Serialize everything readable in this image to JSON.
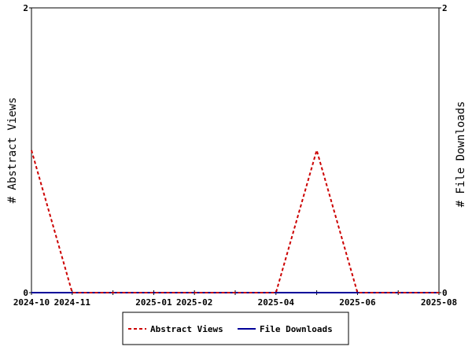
{
  "chart_data": {
    "type": "line",
    "x": [
      "2024-10",
      "2024-11",
      "2024-12",
      "2025-01",
      "2025-02",
      "2025-03",
      "2025-04",
      "2025-05",
      "2025-06",
      "2025-07",
      "2025-08"
    ],
    "x_tick_labels": [
      "2024-10",
      "2024-11",
      "",
      "2025-01",
      "2025-02",
      "",
      "2025-04",
      "",
      "2025-06",
      "",
      "2025-08"
    ],
    "series": [
      {
        "name": "Abstract Views",
        "axis": "left",
        "color": "#cc0000",
        "dash": "dashed",
        "values": [
          1,
          0,
          0,
          0,
          0,
          0,
          0,
          1,
          0,
          0,
          0
        ]
      },
      {
        "name": "File Downloads",
        "axis": "right",
        "color": "#000099",
        "dash": "solid",
        "values": [
          0,
          0,
          0,
          0,
          0,
          0,
          0,
          0,
          0,
          0,
          0
        ]
      }
    ],
    "ylabel_left": "# Abstract Views",
    "ylabel_right": "# File Downloads",
    "ylim_left": [
      0,
      2
    ],
    "ylim_right": [
      0,
      2
    ],
    "y_ticks_left": [
      0,
      2
    ],
    "y_ticks_right": [
      0,
      2
    ],
    "grid": false,
    "legend_position": "bottom"
  }
}
